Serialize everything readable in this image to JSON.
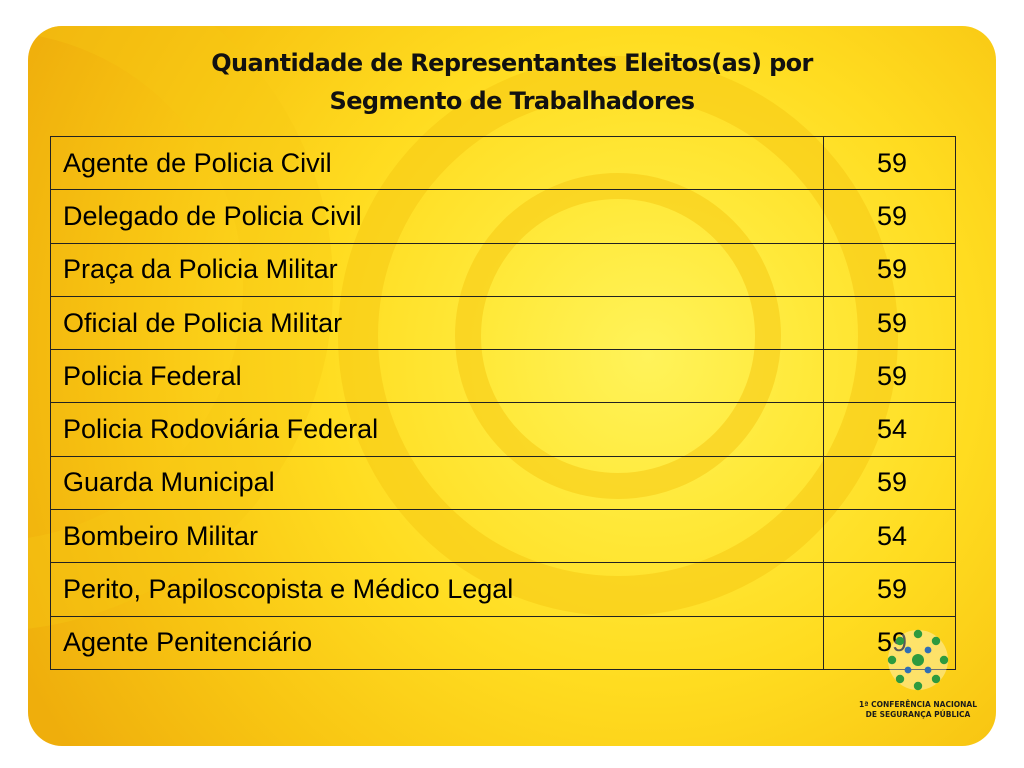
{
  "title": {
    "line1": "Quantidade de Representantes Eleitos(as) por",
    "line2": "Segmento de Trabalhadores"
  },
  "table": {
    "rows": [
      {
        "segment": "Agente de Policia Civil",
        "count": "59"
      },
      {
        "segment": "Delegado de Policia Civil",
        "count": "59"
      },
      {
        "segment": "Praça da Policia Militar",
        "count": "59"
      },
      {
        "segment": "Oficial de Policia Militar",
        "count": "59"
      },
      {
        "segment": "Policia Federal",
        "count": "59"
      },
      {
        "segment": "Policia Rodoviária Federal",
        "count": "54"
      },
      {
        "segment": "Guarda Municipal",
        "count": "59"
      },
      {
        "segment": "Bombeiro Militar",
        "count": "54"
      },
      {
        "segment": "Perito, Papiloscopista e Médico Legal",
        "count": "59"
      },
      {
        "segment": "Agente Penitenciário",
        "count": "59"
      }
    ]
  },
  "logo": {
    "line1": "1ª CONFERÊNCIA NACIONAL",
    "line2": "DE SEGURANÇA PÚBLICA"
  },
  "colors": {
    "panel": "#ffdc20",
    "text": "#000000",
    "logo_green": "#2e9a3e",
    "logo_blue": "#2f6fb5"
  }
}
